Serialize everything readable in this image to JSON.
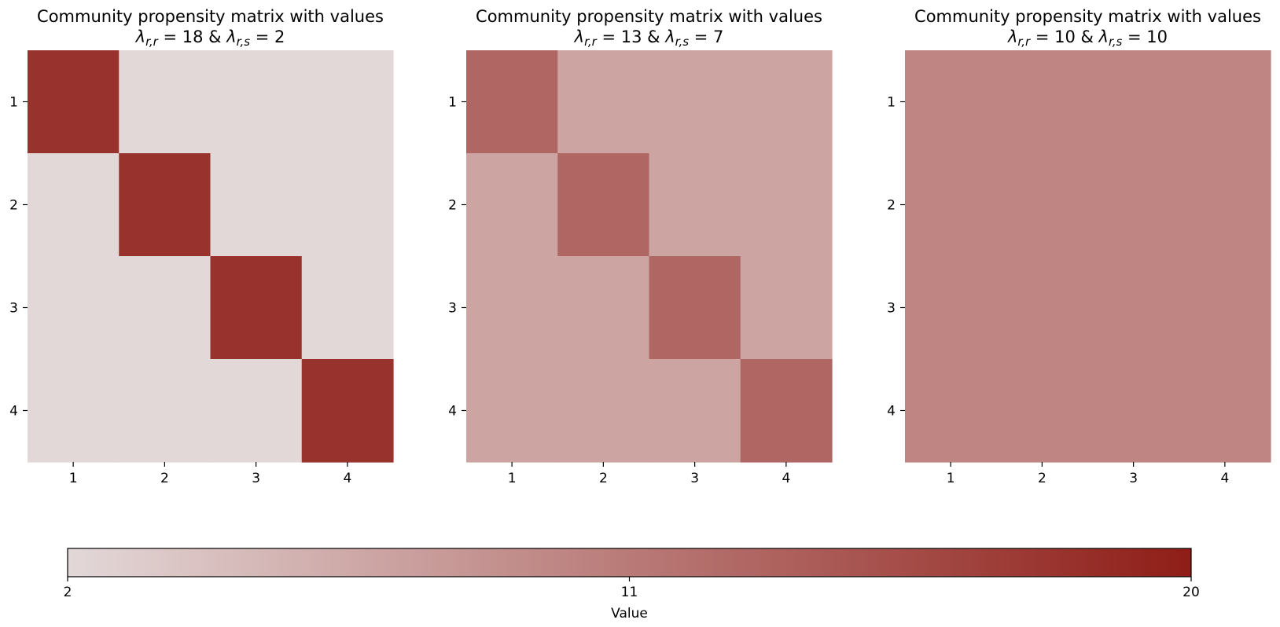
{
  "chart_data": {
    "type": "heatmap",
    "colormap": {
      "low_color": "#e3d8d8",
      "high_color": "#8f1d17",
      "vmin": 2,
      "vmax": 20
    },
    "colorbar": {
      "label": "Value",
      "ticks": [
        2,
        11,
        20
      ],
      "tick_labels": [
        "2",
        "11",
        "20"
      ],
      "orientation": "horizontal",
      "placement": "bottom"
    },
    "panels": [
      {
        "title": "Community propensity matrix with values",
        "subtitle": "λr,r = 18 & λr,s = 2",
        "lambda_rr": 18,
        "lambda_rs": 2,
        "x_tick_labels": [
          "1",
          "2",
          "3",
          "4"
        ],
        "y_tick_labels": [
          "1",
          "2",
          "3",
          "4"
        ],
        "matrix": [
          [
            18,
            2,
            2,
            2
          ],
          [
            2,
            18,
            2,
            2
          ],
          [
            2,
            2,
            18,
            2
          ],
          [
            2,
            2,
            2,
            18
          ]
        ]
      },
      {
        "title": "Community propensity matrix with values",
        "subtitle": "λr,r = 13 & λr,s = 7",
        "lambda_rr": 13,
        "lambda_rs": 7,
        "x_tick_labels": [
          "1",
          "2",
          "3",
          "4"
        ],
        "y_tick_labels": [
          "1",
          "2",
          "3",
          "4"
        ],
        "matrix": [
          [
            13,
            7,
            7,
            7
          ],
          [
            7,
            13,
            7,
            7
          ],
          [
            7,
            7,
            13,
            7
          ],
          [
            7,
            7,
            7,
            13
          ]
        ]
      },
      {
        "title": "Community propensity matrix with values",
        "subtitle": "λr,r = 10 & λr,s = 10",
        "lambda_rr": 10,
        "lambda_rs": 10,
        "x_tick_labels": [
          "1",
          "2",
          "3",
          "4"
        ],
        "y_tick_labels": [
          "1",
          "2",
          "3",
          "4"
        ],
        "matrix": [
          [
            10,
            10,
            10,
            10
          ],
          [
            10,
            10,
            10,
            10
          ],
          [
            10,
            10,
            10,
            10
          ],
          [
            10,
            10,
            10,
            10
          ]
        ]
      }
    ]
  }
}
